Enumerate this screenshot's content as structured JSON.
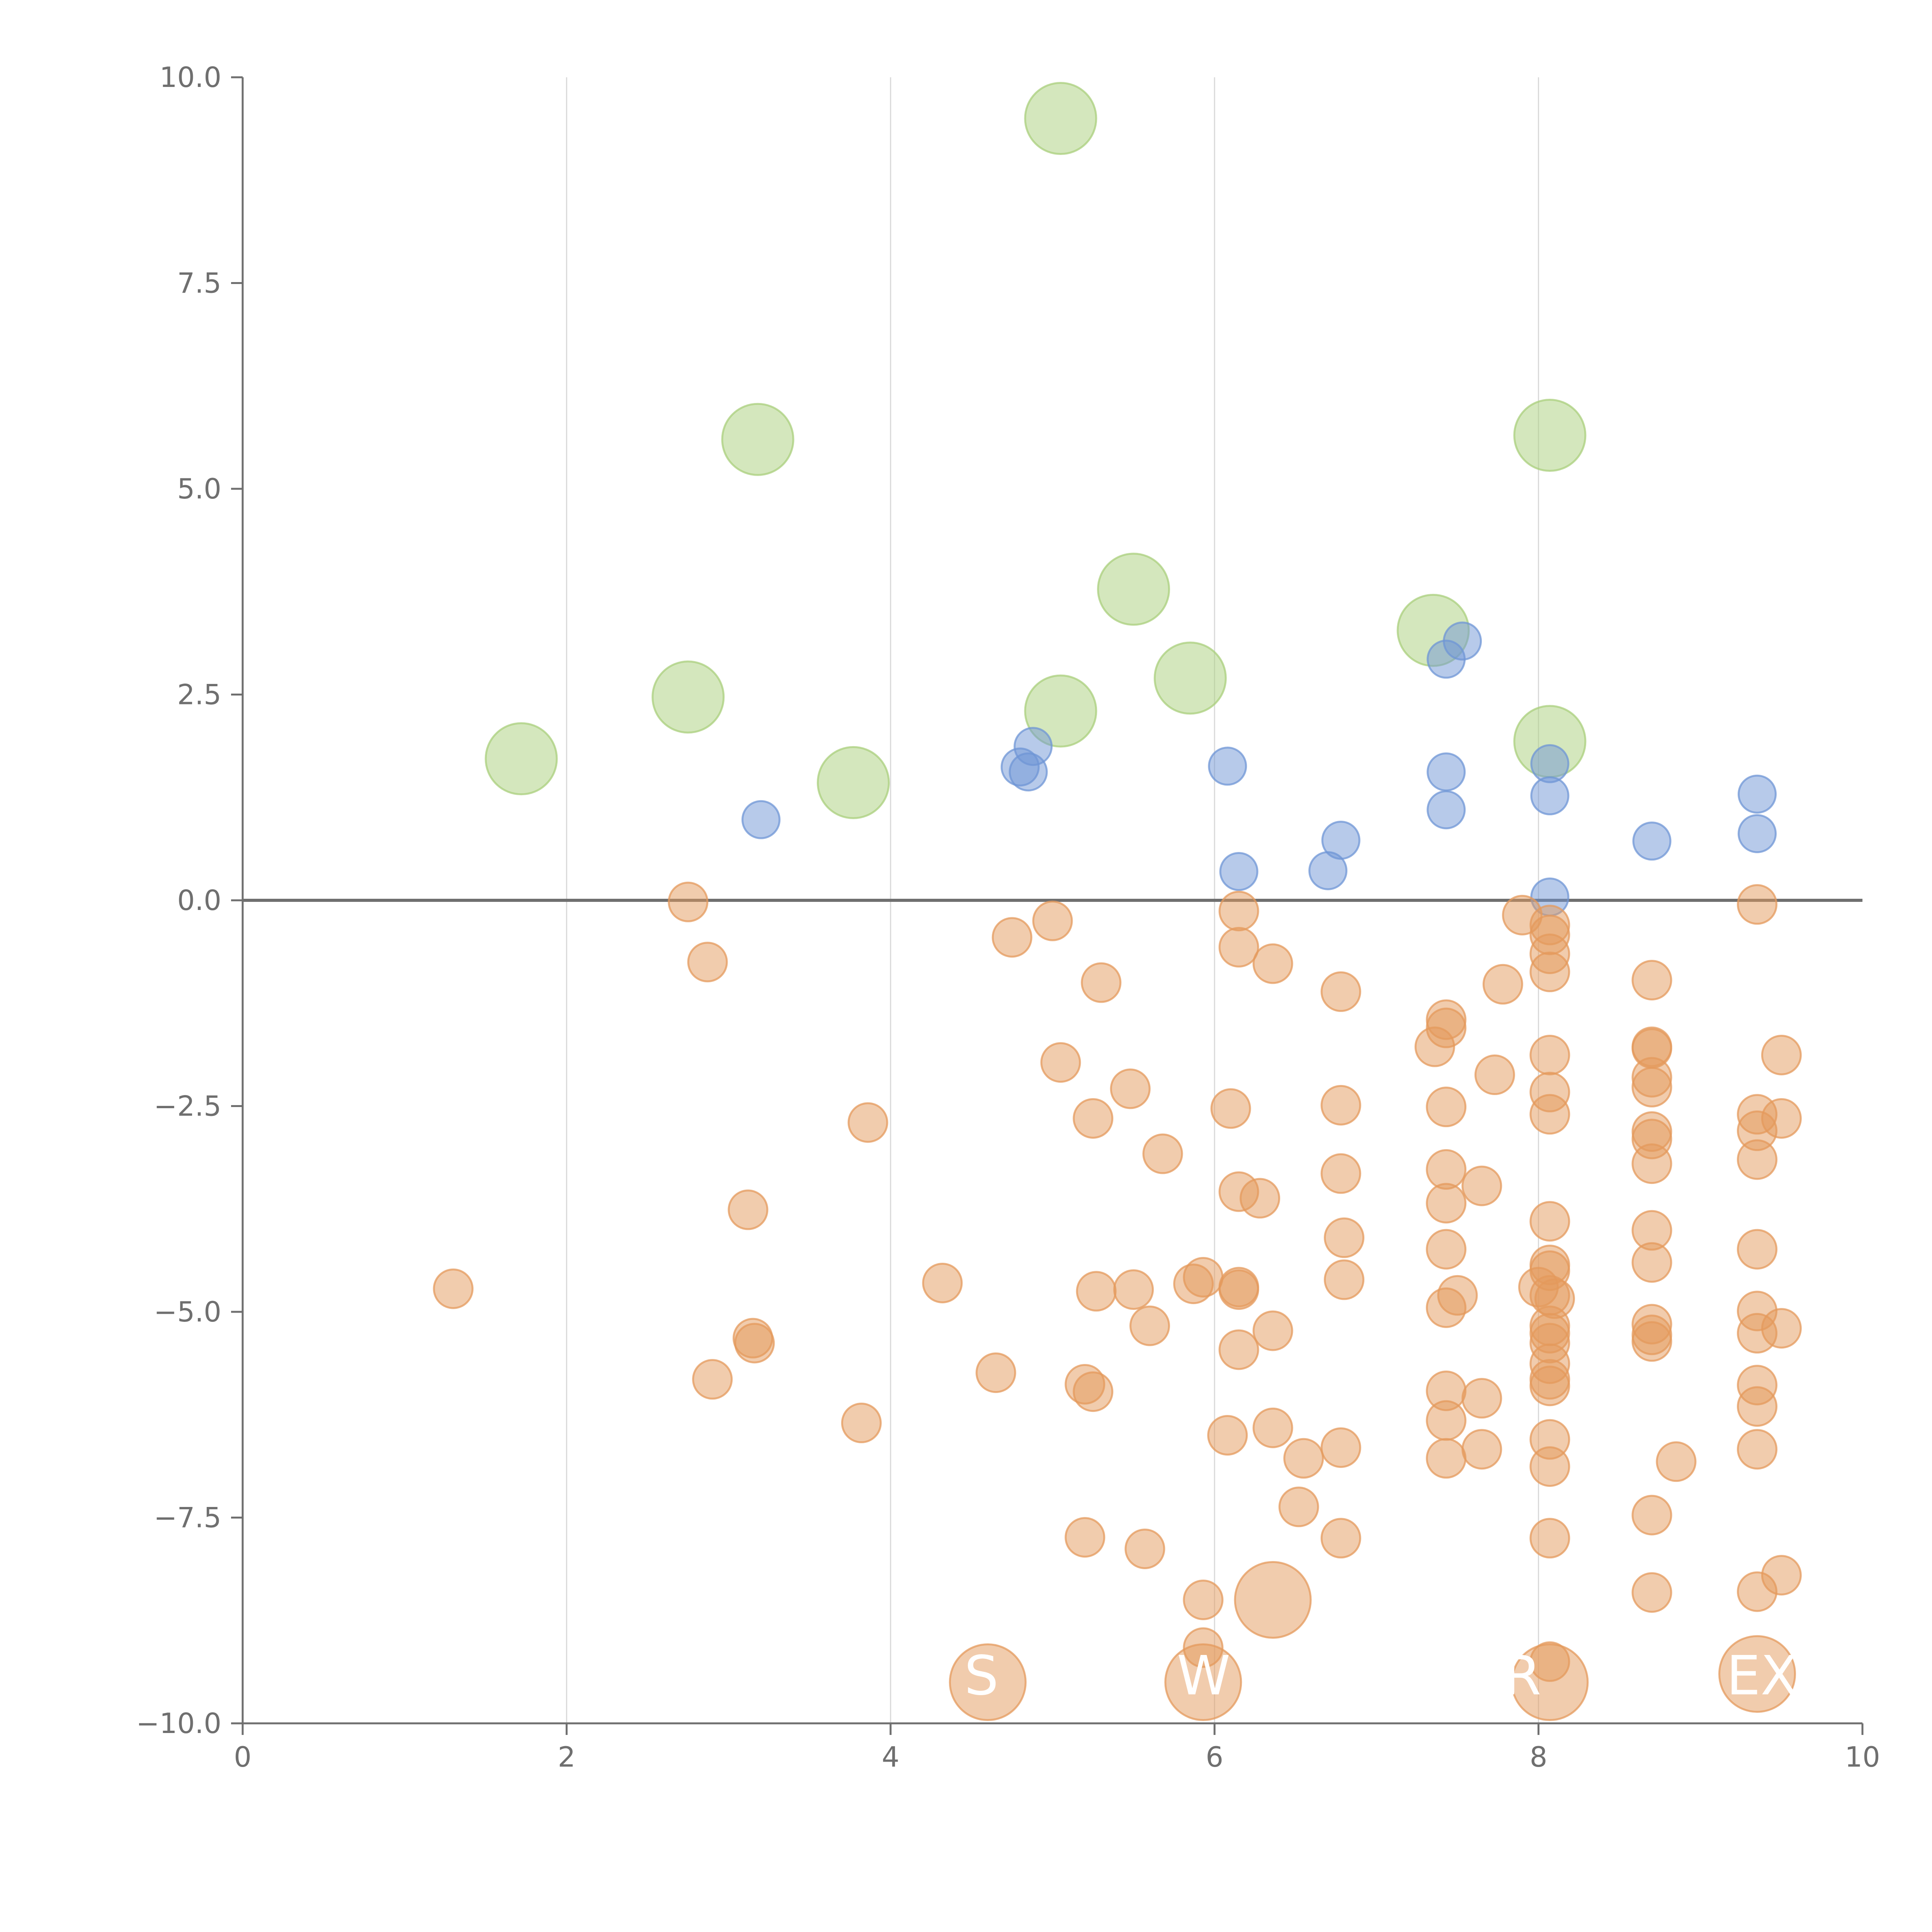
{
  "chart_data": {
    "type": "scatter",
    "title": "",
    "xlabel": "",
    "ylabel": "",
    "xlim": [
      0,
      10
    ],
    "ylim": [
      -10,
      10
    ],
    "x_ticks": [
      "0",
      "2",
      "4",
      "6",
      "8",
      "10"
    ],
    "y_ticks": [
      "10.0",
      "7.5",
      "5.0",
      "2.5",
      "0.0",
      "−2.5",
      "−5.0",
      "−7.5",
      "−10.0"
    ],
    "grid": "vertical",
    "reference_line_y": 0,
    "colors": {
      "green": "#a9cf7c",
      "blue": "#6f95d6",
      "orange": "#e49a5c",
      "axis": "#6f6f6f",
      "grid": "#d9d9d9"
    },
    "series": [
      {
        "name": "green",
        "color": "#a9cf7c",
        "points": [
          [
            5.05,
            9.5
          ],
          [
            3.18,
            5.6
          ],
          [
            8.07,
            5.65
          ],
          [
            5.5,
            3.78
          ],
          [
            7.35,
            3.28
          ],
          [
            5.85,
            2.7
          ],
          [
            5.05,
            2.3
          ],
          [
            2.75,
            2.47
          ],
          [
            1.72,
            1.72
          ],
          [
            3.77,
            1.43
          ],
          [
            8.07,
            1.93
          ]
        ]
      },
      {
        "name": "blue",
        "color": "#6f95d6",
        "points": [
          [
            7.53,
            3.15
          ],
          [
            7.43,
            2.93
          ],
          [
            4.88,
            1.87
          ],
          [
            4.8,
            1.62
          ],
          [
            4.85,
            1.56
          ],
          [
            6.08,
            1.63
          ],
          [
            8.07,
            1.66
          ],
          [
            8.07,
            1.27
          ],
          [
            7.43,
            1.56
          ],
          [
            7.43,
            1.1
          ],
          [
            9.35,
            1.29
          ],
          [
            9.35,
            0.81
          ],
          [
            3.2,
            0.98
          ],
          [
            6.78,
            0.73
          ],
          [
            8.7,
            0.72
          ],
          [
            6.15,
            0.35
          ],
          [
            6.7,
            0.36
          ],
          [
            8.07,
            0.04
          ]
        ]
      },
      {
        "name": "orange",
        "color": "#e49a5c",
        "points": [
          [
            2.75,
            -0.02
          ],
          [
            2.87,
            -0.75
          ],
          [
            4.75,
            -0.45
          ],
          [
            5.0,
            -0.25
          ],
          [
            5.3,
            -1.0
          ],
          [
            6.15,
            -0.13
          ],
          [
            6.15,
            -0.57
          ],
          [
            6.36,
            -0.77
          ],
          [
            6.78,
            -1.11
          ],
          [
            7.9,
            -0.18
          ],
          [
            8.07,
            -0.3
          ],
          [
            8.07,
            -0.42
          ],
          [
            8.07,
            -0.65
          ],
          [
            8.07,
            -0.87
          ],
          [
            7.78,
            -1.02
          ],
          [
            8.7,
            -0.97
          ],
          [
            9.35,
            -0.05
          ],
          [
            7.43,
            -1.45
          ],
          [
            7.43,
            -1.55
          ],
          [
            7.36,
            -1.78
          ],
          [
            7.73,
            -2.12
          ],
          [
            8.07,
            -1.88
          ],
          [
            8.07,
            -2.33
          ],
          [
            8.07,
            -2.6
          ],
          [
            8.7,
            -1.78
          ],
          [
            8.7,
            -1.8
          ],
          [
            8.7,
            -2.15
          ],
          [
            8.7,
            -2.27
          ],
          [
            9.5,
            -1.88
          ],
          [
            9.35,
            -2.6
          ],
          [
            9.35,
            -2.8
          ],
          [
            9.5,
            -2.65
          ],
          [
            5.05,
            -1.97
          ],
          [
            5.48,
            -2.29
          ],
          [
            5.25,
            -2.65
          ],
          [
            5.68,
            -3.08
          ],
          [
            6.1,
            -2.53
          ],
          [
            6.78,
            -2.49
          ],
          [
            7.43,
            -2.51
          ],
          [
            3.86,
            -2.7
          ],
          [
            8.7,
            -2.81
          ],
          [
            8.7,
            -2.9
          ],
          [
            8.7,
            -3.2
          ],
          [
            9.35,
            -3.15
          ],
          [
            6.78,
            -3.32
          ],
          [
            7.43,
            -3.27
          ],
          [
            7.43,
            -3.68
          ],
          [
            7.65,
            -3.47
          ],
          [
            6.15,
            -3.54
          ],
          [
            6.28,
            -3.62
          ],
          [
            3.12,
            -3.76
          ],
          [
            8.07,
            -3.9
          ],
          [
            8.7,
            -4.01
          ],
          [
            6.8,
            -4.1
          ],
          [
            7.43,
            -4.24
          ],
          [
            8.07,
            -4.43
          ],
          [
            8.7,
            -4.4
          ],
          [
            9.35,
            -4.24
          ],
          [
            8.07,
            -4.5
          ],
          [
            1.3,
            -4.72
          ],
          [
            4.32,
            -4.65
          ],
          [
            5.27,
            -4.75
          ],
          [
            5.5,
            -4.73
          ],
          [
            5.87,
            -4.66
          ],
          [
            5.93,
            -4.58
          ],
          [
            6.15,
            -4.7
          ],
          [
            6.15,
            -4.73
          ],
          [
            6.8,
            -4.61
          ],
          [
            7.5,
            -4.8
          ],
          [
            7.43,
            -4.95
          ],
          [
            8.0,
            -4.7
          ],
          [
            8.07,
            -4.8
          ],
          [
            8.1,
            -4.84
          ],
          [
            9.35,
            -4.99
          ],
          [
            5.6,
            -5.17
          ],
          [
            3.15,
            -5.32
          ],
          [
            3.16,
            -5.38
          ],
          [
            6.36,
            -5.23
          ],
          [
            6.15,
            -5.46
          ],
          [
            8.07,
            -5.17
          ],
          [
            8.07,
            -5.26
          ],
          [
            8.07,
            -5.38
          ],
          [
            8.7,
            -5.15
          ],
          [
            8.7,
            -5.28
          ],
          [
            8.7,
            -5.36
          ],
          [
            9.35,
            -5.26
          ],
          [
            9.5,
            -5.2
          ],
          [
            2.9,
            -5.82
          ],
          [
            4.65,
            -5.74
          ],
          [
            5.2,
            -5.88
          ],
          [
            5.25,
            -5.97
          ],
          [
            7.43,
            -5.96
          ],
          [
            7.65,
            -6.05
          ],
          [
            8.07,
            -5.63
          ],
          [
            8.07,
            -5.82
          ],
          [
            8.07,
            -5.9
          ],
          [
            9.35,
            -5.89
          ],
          [
            9.35,
            -6.15
          ],
          [
            3.82,
            -6.35
          ],
          [
            6.08,
            -6.5
          ],
          [
            6.36,
            -6.41
          ],
          [
            6.55,
            -6.78
          ],
          [
            6.78,
            -6.65
          ],
          [
            7.43,
            -6.32
          ],
          [
            7.43,
            -6.78
          ],
          [
            7.65,
            -6.67
          ],
          [
            8.07,
            -6.55
          ],
          [
            8.07,
            -6.88
          ],
          [
            8.85,
            -6.82
          ],
          [
            9.35,
            -6.67
          ],
          [
            6.52,
            -7.37
          ],
          [
            6.78,
            -7.75
          ],
          [
            5.2,
            -7.74
          ],
          [
            5.57,
            -7.88
          ],
          [
            8.07,
            -7.75
          ],
          [
            8.7,
            -7.47
          ],
          [
            8.7,
            -8.41
          ],
          [
            9.35,
            -8.4
          ],
          [
            9.5,
            -8.2
          ],
          [
            5.93,
            -8.5
          ],
          [
            5.93,
            -9.08
          ],
          [
            8.07,
            -9.25
          ]
        ]
      },
      {
        "name": "orange-large",
        "color": "#e49a5c",
        "points": [
          [
            6.36,
            -8.5
          ],
          [
            4.6,
            -9.5
          ],
          [
            5.93,
            -9.5
          ],
          [
            8.07,
            -9.5
          ],
          [
            9.35,
            -9.4
          ]
        ]
      }
    ],
    "annotations": [
      "S",
      "W",
      "R",
      "EX"
    ]
  }
}
